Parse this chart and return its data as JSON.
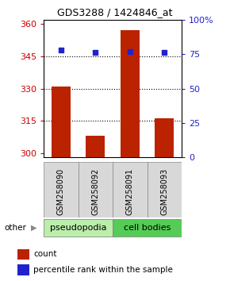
{
  "title": "GDS3288 / 1424846_at",
  "samples": [
    "GSM258090",
    "GSM258092",
    "GSM258091",
    "GSM258093"
  ],
  "groups": [
    "pseudopodia",
    "pseudopodia",
    "cell bodies",
    "cell bodies"
  ],
  "counts": [
    331,
    308,
    357,
    316
  ],
  "percentile_ranks": [
    78,
    76,
    77,
    76
  ],
  "ylim_left": [
    298,
    362
  ],
  "ylim_right": [
    0,
    100
  ],
  "yticks_left": [
    300,
    315,
    330,
    345,
    360
  ],
  "yticks_right": [
    0,
    25,
    50,
    75,
    100
  ],
  "yticklabels_right": [
    "0",
    "25",
    "50",
    "75",
    "100%"
  ],
  "bar_color": "#bb2200",
  "dot_color": "#2222cc",
  "group_colors": {
    "pseudopodia": "#bbeeaa",
    "cell bodies": "#55cc55"
  },
  "left_axis_color": "#cc0000",
  "right_axis_color": "#2222cc",
  "background_color": "#ffffff",
  "bar_width": 0.55,
  "dot_size": 18,
  "other_label": "other",
  "legend_count_label": "count",
  "legend_pct_label": "percentile rank within the sample",
  "grid_yticks": [
    315,
    330,
    345
  ],
  "group_label_fontsize": 8,
  "sample_fontsize": 7,
  "tick_fontsize": 8
}
